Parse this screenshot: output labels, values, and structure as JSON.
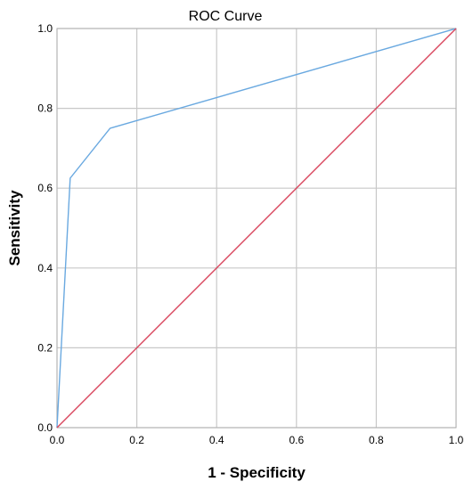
{
  "chart_data": {
    "type": "line",
    "title": "ROC Curve",
    "xlabel": "1 - Specificity",
    "ylabel": "Sensitivity",
    "xlim": [
      0,
      1
    ],
    "ylim": [
      0,
      1
    ],
    "x_ticks": [
      "0.0",
      "0.2",
      "0.4",
      "0.6",
      "0.8",
      "1.0"
    ],
    "y_ticks": [
      "0.0",
      "0.2",
      "0.4",
      "0.6",
      "0.8",
      "1.0"
    ],
    "grid": true,
    "legend": "none",
    "series": [
      {
        "color": "#6aa9e0",
        "points": [
          [
            0.0,
            0.0
          ],
          [
            0.033,
            0.625
          ],
          [
            0.133,
            0.75
          ],
          [
            1.0,
            1.0
          ]
        ]
      },
      {
        "color": "#d9475e",
        "points": [
          [
            0.0,
            0.0
          ],
          [
            1.0,
            1.0
          ]
        ]
      }
    ]
  }
}
